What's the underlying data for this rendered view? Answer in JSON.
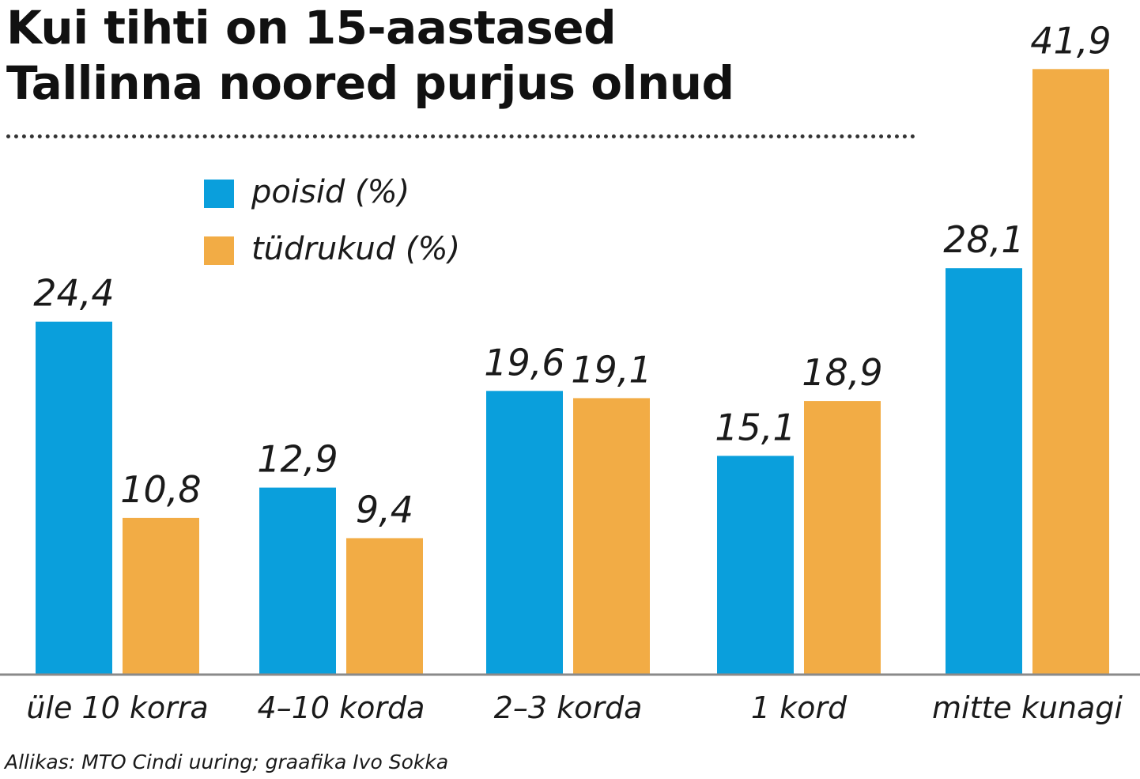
{
  "chart_data": {
    "type": "bar",
    "title": [
      "Kui tihti on 15-aastased",
      "Tallinna noored purjus olnud"
    ],
    "categories": [
      "üle 10 korra",
      "4–10 korda",
      "2–3 korda",
      "1 kord",
      "mitte kunagi"
    ],
    "series": [
      {
        "name": "poisid (%)",
        "color": "#0a9fdc",
        "values": [
          24.4,
          12.9,
          19.6,
          15.1,
          28.1
        ],
        "labels": [
          "24,4",
          "12,9",
          "19,6",
          "15,1",
          "28,1"
        ]
      },
      {
        "name": "tüdrukud (%)",
        "color": "#f2ac45",
        "values": [
          10.8,
          9.4,
          19.1,
          18.9,
          41.9
        ],
        "labels": [
          "10,8",
          "9,4",
          "19,1",
          "18,9",
          "41,9"
        ]
      }
    ],
    "ylim": [
      0,
      42
    ],
    "grid": false,
    "legend_position": "top-left",
    "source": "Allikas: MTO Cindi uuring; graafika Ivo Sokka"
  }
}
